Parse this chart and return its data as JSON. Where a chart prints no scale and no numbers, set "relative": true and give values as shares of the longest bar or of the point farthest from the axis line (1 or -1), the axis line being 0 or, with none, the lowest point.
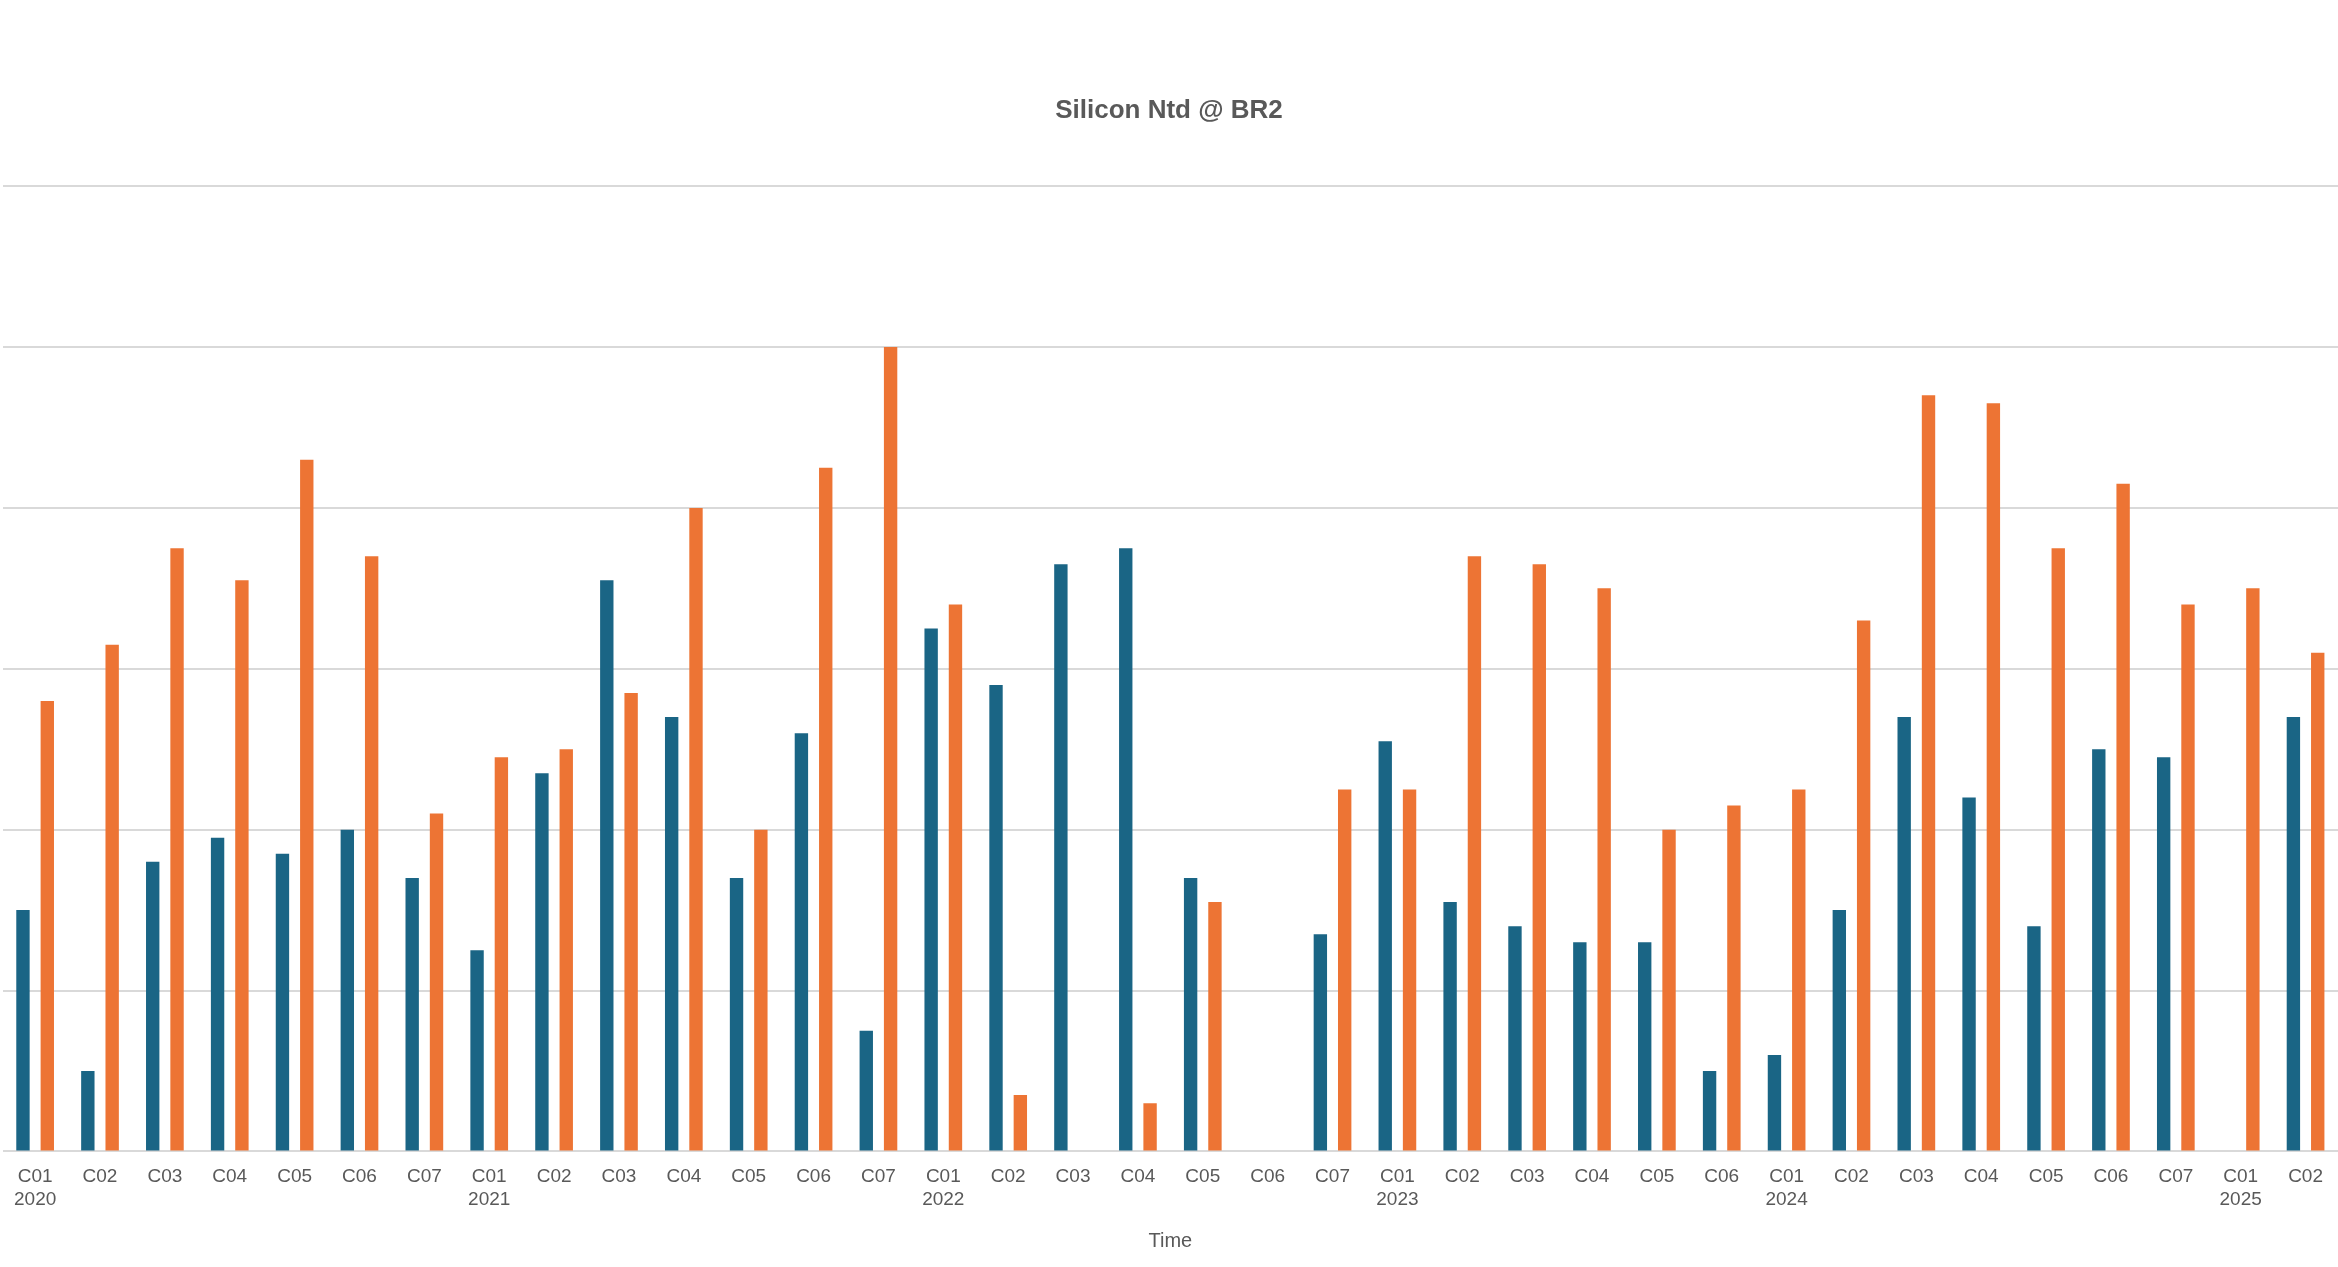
{
  "chart_data": {
    "type": "bar",
    "title": "Silicon Ntd @ BR2",
    "xlabel": "Time",
    "relative": true,
    "grid": "y",
    "legend": false,
    "categories": [
      "C01\n2020",
      "C02",
      "C03",
      "C04",
      "C05",
      "C06",
      "C07",
      "C01\n2021",
      "C02",
      "C03",
      "C04",
      "C05",
      "C06",
      "C07",
      "C01\n2022",
      "C02",
      "C03",
      "C04",
      "C05",
      "C06",
      "C07",
      "C01\n2023",
      "C02",
      "C03",
      "C04",
      "C05",
      "C06",
      "C01\n2024",
      "C02",
      "C03",
      "C04",
      "C05",
      "C06",
      "C07",
      "C01\n2025",
      "C02"
    ],
    "series": [
      {
        "color": "#1a6585",
        "values": [
          0.3,
          0.1,
          0.36,
          0.39,
          0.37,
          0.4,
          0.34,
          0.25,
          0.47,
          0.71,
          0.54,
          0.34,
          0.52,
          0.15,
          0.65,
          0.58,
          0.73,
          0.75,
          0.34,
          null,
          0.27,
          0.51,
          0.31,
          0.28,
          0.26,
          0.26,
          0.1,
          0.12,
          0.3,
          0.54,
          0.44,
          0.28,
          0.5,
          0.49,
          null,
          0.54
        ]
      },
      {
        "color": "#ed7434",
        "values": [
          0.56,
          0.63,
          0.75,
          0.71,
          0.86,
          0.74,
          0.42,
          0.49,
          0.5,
          0.57,
          0.8,
          0.4,
          0.85,
          1,
          0.68,
          0.07,
          null,
          0.06,
          0.31,
          null,
          0.45,
          0.45,
          0.74,
          0.73,
          0.7,
          0.4,
          0.43,
          0.45,
          0.66,
          0.94,
          0.93,
          0.75,
          0.83,
          0.68,
          0.7,
          0.62
        ]
      }
    ]
  }
}
